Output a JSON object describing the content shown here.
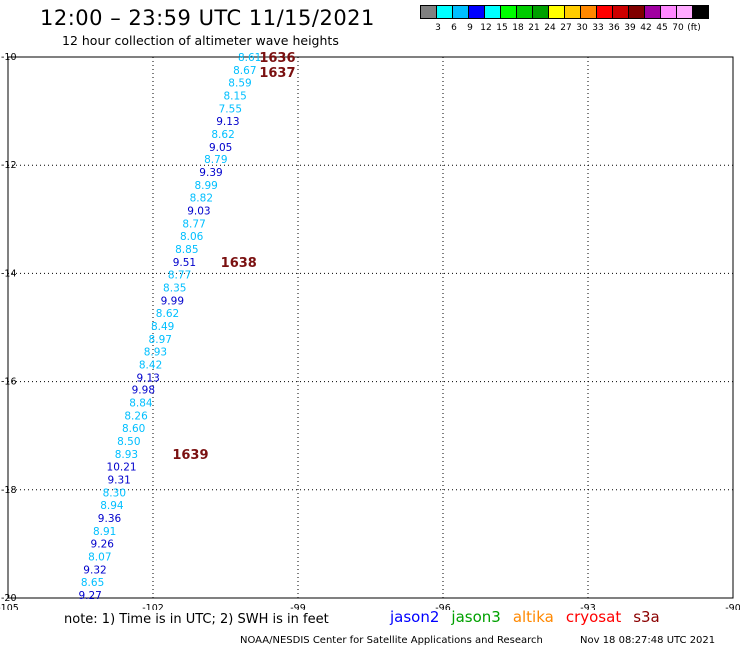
{
  "title": "12:00 – 23:59 UTC 11/15/2021",
  "subtitle": "12 hour collection of altimeter wave heights",
  "legend": {
    "colors": [
      "#808080",
      "#00ffff",
      "#00bfff",
      "#0000ff",
      "#00ffff",
      "#00ff00",
      "#00cc00",
      "#00a000",
      "#ffff00",
      "#ffcc00",
      "#ff8800",
      "#ff0000",
      "#cc0000",
      "#800000",
      "#a000a0",
      "#ff88ff",
      "#ffaaff",
      "#000000"
    ],
    "labels": [
      "3",
      "6",
      "9",
      "12",
      "15",
      "18",
      "21",
      "24",
      "27",
      "30",
      "33",
      "36",
      "39",
      "42",
      "45",
      "70",
      "(ft)"
    ]
  },
  "chart_data": {
    "type": "scatter",
    "xlim": [
      -105,
      -90
    ],
    "ylim": [
      -20,
      -10
    ],
    "x_ticks": [
      -105,
      -102,
      -99,
      -96,
      -93,
      -90
    ],
    "x_tick_labels": [
      "-105",
      "-102",
      "-99",
      "-96",
      "-93",
      "-90"
    ],
    "y_ticks": [
      -10,
      -12,
      -14,
      -16,
      -18,
      -20
    ],
    "y_tick_labels": [
      "-10",
      "-12",
      "-14",
      "-16",
      "-18",
      "-20"
    ],
    "grid": true,
    "points": [
      {
        "lon": -100.0,
        "lat": -10.0,
        "swh": "8.61",
        "color": "#00bfff"
      },
      {
        "lon": -100.1,
        "lat": -10.24,
        "swh": "8.67",
        "color": "#00bfff"
      },
      {
        "lon": -100.2,
        "lat": -10.47,
        "swh": "8.59",
        "color": "#00bfff"
      },
      {
        "lon": -100.3,
        "lat": -10.71,
        "swh": "8.15",
        "color": "#00bfff"
      },
      {
        "lon": -100.4,
        "lat": -10.95,
        "swh": "7.55",
        "color": "#00bfff"
      },
      {
        "lon": -100.45,
        "lat": -11.18,
        "swh": "9.13",
        "color": "#0000cc"
      },
      {
        "lon": -100.55,
        "lat": -11.42,
        "swh": "8.62",
        "color": "#00bfff"
      },
      {
        "lon": -100.6,
        "lat": -11.66,
        "swh": "9.05",
        "color": "#0000cc"
      },
      {
        "lon": -100.7,
        "lat": -11.89,
        "swh": "8.79",
        "color": "#00bfff"
      },
      {
        "lon": -100.8,
        "lat": -12.13,
        "swh": "9.39",
        "color": "#0000cc"
      },
      {
        "lon": -100.9,
        "lat": -12.37,
        "swh": "8.99",
        "color": "#00bfff"
      },
      {
        "lon": -101.0,
        "lat": -12.6,
        "swh": "8.82",
        "color": "#00bfff"
      },
      {
        "lon": -101.05,
        "lat": -12.84,
        "swh": "9.03",
        "color": "#0000cc"
      },
      {
        "lon": -101.15,
        "lat": -13.08,
        "swh": "8.77",
        "color": "#00bfff"
      },
      {
        "lon": -101.2,
        "lat": -13.31,
        "swh": "8.06",
        "color": "#00bfff"
      },
      {
        "lon": -101.3,
        "lat": -13.55,
        "swh": "8.85",
        "color": "#00bfff"
      },
      {
        "lon": -101.35,
        "lat": -13.79,
        "swh": "9.51",
        "color": "#0000cc"
      },
      {
        "lon": -101.45,
        "lat": -14.02,
        "swh": "8.77",
        "color": "#00bfff"
      },
      {
        "lon": -101.55,
        "lat": -14.26,
        "swh": "8.35",
        "color": "#00bfff"
      },
      {
        "lon": -101.6,
        "lat": -14.5,
        "swh": "9.99",
        "color": "#0000cc"
      },
      {
        "lon": -101.7,
        "lat": -14.73,
        "swh": "8.62",
        "color": "#00bfff"
      },
      {
        "lon": -101.8,
        "lat": -14.97,
        "swh": "8.49",
        "color": "#00bfff"
      },
      {
        "lon": -101.85,
        "lat": -15.21,
        "swh": "8.97",
        "color": "#00bfff"
      },
      {
        "lon": -101.95,
        "lat": -15.44,
        "swh": "8.93",
        "color": "#00bfff"
      },
      {
        "lon": -102.05,
        "lat": -15.68,
        "swh": "8.42",
        "color": "#00bfff"
      },
      {
        "lon": -102.1,
        "lat": -15.92,
        "swh": "9.13",
        "color": "#0000cc"
      },
      {
        "lon": -102.2,
        "lat": -16.15,
        "swh": "9.98",
        "color": "#0000cc"
      },
      {
        "lon": -102.25,
        "lat": -16.39,
        "swh": "8.84",
        "color": "#00bfff"
      },
      {
        "lon": -102.35,
        "lat": -16.63,
        "swh": "8.26",
        "color": "#00bfff"
      },
      {
        "lon": -102.4,
        "lat": -16.86,
        "swh": "8.60",
        "color": "#00bfff"
      },
      {
        "lon": -102.5,
        "lat": -17.1,
        "swh": "8.50",
        "color": "#00bfff"
      },
      {
        "lon": -102.55,
        "lat": -17.34,
        "swh": "8.93",
        "color": "#00bfff"
      },
      {
        "lon": -102.65,
        "lat": -17.57,
        "swh": "10.21",
        "color": "#0000cc"
      },
      {
        "lon": -102.7,
        "lat": -17.81,
        "swh": "9.31",
        "color": "#0000cc"
      },
      {
        "lon": -102.8,
        "lat": -18.05,
        "swh": "8.30",
        "color": "#00bfff"
      },
      {
        "lon": -102.85,
        "lat": -18.28,
        "swh": "8.94",
        "color": "#00bfff"
      },
      {
        "lon": -102.9,
        "lat": -18.52,
        "swh": "9.36",
        "color": "#0000cc"
      },
      {
        "lon": -103.0,
        "lat": -18.76,
        "swh": "8.91",
        "color": "#00bfff"
      },
      {
        "lon": -103.05,
        "lat": -18.99,
        "swh": "9.26",
        "color": "#0000cc"
      },
      {
        "lon": -103.1,
        "lat": -19.23,
        "swh": "8.07",
        "color": "#00bfff"
      },
      {
        "lon": -103.2,
        "lat": -19.47,
        "swh": "9.32",
        "color": "#0000cc"
      },
      {
        "lon": -103.25,
        "lat": -19.7,
        "swh": "8.65",
        "color": "#00bfff"
      },
      {
        "lon": -103.3,
        "lat": -19.94,
        "swh": "9.27",
        "color": "#0000cc"
      }
    ],
    "pass_labels": [
      {
        "lon": -99.8,
        "lat": -10.0,
        "text": "1636"
      },
      {
        "lon": -99.8,
        "lat": -10.28,
        "text": "1637"
      },
      {
        "lon": -100.6,
        "lat": -13.79,
        "text": "1638"
      },
      {
        "lon": -101.6,
        "lat": -17.34,
        "text": "1639"
      }
    ]
  },
  "footer": {
    "note": "note: 1) Time is in UTC; 2) SWH is in feet",
    "satellites": [
      {
        "name": "jason2",
        "color": "#0000ff"
      },
      {
        "name": "jason3",
        "color": "#00a000"
      },
      {
        "name": "altika",
        "color": "#ff8800"
      },
      {
        "name": "cryosat",
        "color": "#ff0000"
      },
      {
        "name": "s3a",
        "color": "#8b0000"
      }
    ],
    "credit": "NOAA/NESDIS Center for Satellite Applications and Research",
    "timestamp": "Nov 18 08:27:48 UTC 2021"
  }
}
